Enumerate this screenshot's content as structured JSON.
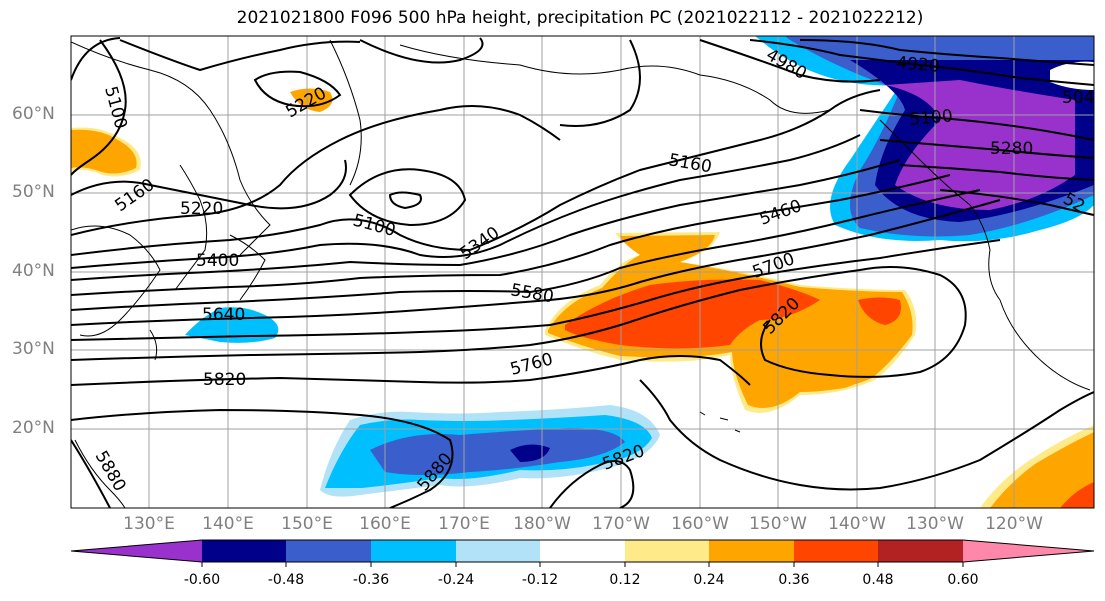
{
  "title": "2021021800 F096 500 hPa height, precipitation PC (2021022112 - 2021022212)",
  "lat_labels": [
    "60°N",
    "50°N",
    "40°N",
    "30°N",
    "20°N"
  ],
  "lon_labels": [
    "130°E",
    "140°E",
    "150°E",
    "160°E",
    "170°E",
    "180°W",
    "170°W",
    "160°W",
    "150°W",
    "140°W",
    "130°W",
    "120°W"
  ],
  "contour_labels": [
    "5100",
    "5220",
    "5160",
    "5220",
    "5400",
    "5640",
    "5820",
    "5880",
    "5100",
    "5340",
    "5580",
    "5760",
    "5820",
    "5700",
    "5460",
    "5160",
    "5100",
    "4980",
    "4920",
    "5280",
    "504",
    "52",
    "5820",
    "5880"
  ],
  "colorbar": {
    "ticks": [
      "-0.60",
      "-0.48",
      "-0.36",
      "-0.24",
      "-0.12",
      "0.12",
      "0.24",
      "0.36",
      "0.48",
      "0.60"
    ],
    "colors": [
      "#9932CC",
      "#00008B",
      "#3A5FCD",
      "#00BFFF",
      "#B2E2F8",
      "#FFFFFF",
      "#FFEA8A",
      "#FFA500",
      "#FF4500",
      "#B22222",
      "#FF88AA"
    ]
  }
}
